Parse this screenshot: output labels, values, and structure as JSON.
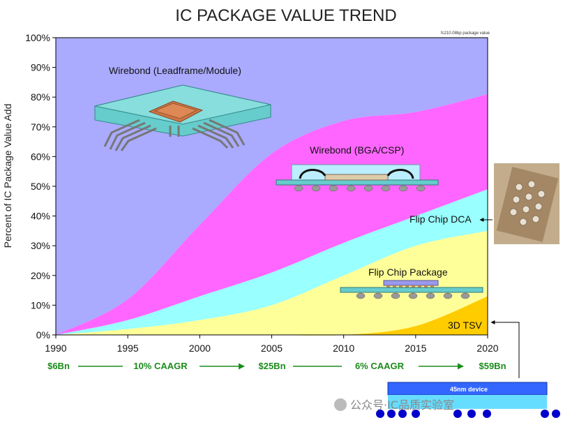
{
  "chart_data": {
    "type": "area",
    "title": "IC PACKAGE VALUE TREND",
    "corner_note": "fc210.08bp package value",
    "ylabel": "Percent of IC Package Value Add",
    "xlabel": "",
    "xlim": [
      1990,
      2020
    ],
    "ylim": [
      0,
      100
    ],
    "x_ticks": [
      "1990",
      "1995",
      "2000",
      "2005",
      "2010",
      "2015",
      "2020"
    ],
    "y_ticks": [
      "0%",
      "10%",
      "20%",
      "30%",
      "40%",
      "50%",
      "60%",
      "70%",
      "80%",
      "90%",
      "100%"
    ],
    "stacked": true,
    "x": [
      1990,
      1995,
      2000,
      2005,
      2010,
      2015,
      2020
    ],
    "series": [
      {
        "name": "3D TSV",
        "color": "#ffcc00",
        "values": [
          0,
          0,
          0,
          0,
          0,
          3,
          13
        ]
      },
      {
        "name": "Flip Chip Package",
        "color": "#ffff99",
        "values": [
          0,
          2,
          5,
          10,
          20,
          27,
          22
        ]
      },
      {
        "name": "Flip Chip DCA",
        "color": "#99ffff",
        "values": [
          0,
          3,
          8,
          11,
          11,
          10,
          14
        ]
      },
      {
        "name": "Wirebond (BGA/CSP)",
        "color": "#ff66ff",
        "values": [
          0,
          7,
          24,
          40,
          41,
          35,
          32
        ]
      },
      {
        "name": "Wirebond (Leadframe/Module)",
        "color": "#aaaaff",
        "values": [
          100,
          88,
          63,
          39,
          28,
          25,
          19
        ]
      }
    ],
    "annotations": {
      "wirebond_leadframe": "Wirebond (Leadframe/Module)",
      "wirebond_bga": "Wirebond (BGA/CSP)",
      "flip_chip_dca": "Flip Chip DCA",
      "flip_chip_package": "Flip Chip Package",
      "tsv": "3D TSV",
      "device_label": "45nm device"
    },
    "growth_row": {
      "start": "$6Bn",
      "cagr1": "10% CAAGR",
      "mid": "$25Bn",
      "cagr2": "6% CAAGR",
      "end": "$59Bn",
      "color": "#1a8c1a"
    }
  },
  "watermark": "公众号·IC品质实验室"
}
